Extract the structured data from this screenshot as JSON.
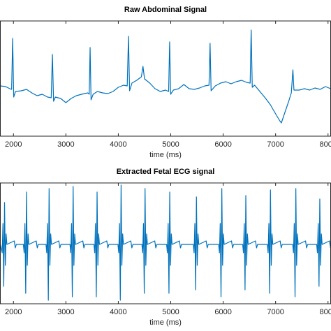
{
  "chart_data": [
    {
      "type": "line",
      "title": "Raw Abdominal Signal",
      "xlabel": "time (ms)",
      "color": "#0072bd",
      "x": [
        1750,
        1850,
        1930,
        1965,
        1985,
        2005,
        2040,
        2150,
        2250,
        2350,
        2450,
        2550,
        2650,
        2720,
        2743,
        2765,
        2800,
        2900,
        3000,
        3100,
        3200,
        3300,
        3420,
        3445,
        3462,
        3480,
        3520,
        3600,
        3700,
        3800,
        3900,
        4000,
        4100,
        4170,
        4194,
        4215,
        4260,
        4350,
        4440,
        4470,
        4500,
        4600,
        4700,
        4800,
        4900,
        4960,
        4979,
        4998,
        5050,
        5150,
        5250,
        5350,
        5450,
        5550,
        5650,
        5730,
        5750,
        5770,
        5850,
        5950,
        6050,
        6150,
        6250,
        6350,
        6450,
        6515,
        6534,
        6555,
        6600,
        6700,
        6800,
        6900,
        7000,
        7080,
        7110,
        7150,
        7250,
        7300,
        7330,
        7350,
        7450,
        7550,
        7650,
        7750,
        7850,
        7950,
        8050
      ],
      "values": [
        0.2,
        0.1,
        -0.2,
        -0.3,
        7.0,
        -1.4,
        -0.6,
        -0.5,
        -0.3,
        -0.8,
        -1.2,
        -1.0,
        -1.4,
        -1.5,
        4.7,
        -2.0,
        -1.4,
        -1.6,
        -2.2,
        -1.6,
        -1.2,
        -1.0,
        -0.8,
        -1.0,
        5.7,
        -1.8,
        -1.0,
        -0.6,
        -0.8,
        -0.9,
        -0.6,
        0.0,
        0.3,
        0.2,
        7.3,
        -0.5,
        0.6,
        1.0,
        1.5,
        3.0,
        1.2,
        0.6,
        -0.2,
        -0.6,
        -0.4,
        -0.6,
        6.5,
        -1.0,
        -0.4,
        -0.2,
        0.4,
        -0.2,
        -0.3,
        -0.1,
        0.2,
        0.3,
        6.3,
        -0.5,
        0.2,
        0.6,
        0.8,
        0.5,
        0.8,
        1.0,
        0.7,
        0.6,
        8.2,
        0.0,
        0.3,
        -0.6,
        -1.5,
        -2.5,
        -3.8,
        -4.8,
        -5.1,
        -4.2,
        -2.0,
        -0.8,
        2.5,
        -0.4,
        -0.4,
        -0.2,
        -0.4,
        -0.1,
        -0.3,
        0.1,
        -0.2
      ],
      "xlim": [
        1750,
        8050
      ],
      "xticks": [
        2000,
        3000,
        4000,
        5000,
        6000,
        7000,
        8000
      ],
      "ylim": [
        -7,
        9.5
      ]
    },
    {
      "type": "line",
      "title": "Extracted Fetal ECG signal",
      "xlabel": "time (ms)",
      "color": "#0072bd",
      "x": [
        1750,
        1785,
        1800,
        1815,
        1830,
        1845,
        1860,
        1875,
        2015,
        2035,
        2055,
        2189,
        2204,
        2219,
        2234,
        2249,
        2264,
        2279,
        2294,
        2434,
        2454,
        2474,
        2620,
        2635,
        2650,
        2665,
        2680,
        2695,
        2710,
        2725,
        2865,
        2885,
        2905,
        3078,
        3093,
        3108,
        3123,
        3138,
        3153,
        3168,
        3183,
        3323,
        3343,
        3363,
        3535,
        3550,
        3565,
        3580,
        3595,
        3610,
        3625,
        3640,
        3780,
        3800,
        3820,
        3993,
        4008,
        4023,
        4038,
        4053,
        4068,
        4083,
        4098,
        4238,
        4258,
        4278,
        4450,
        4465,
        4480,
        4495,
        4510,
        4525,
        4540,
        4555,
        4695,
        4715,
        4735,
        4921,
        4936,
        4951,
        4966,
        4981,
        4996,
        5011,
        5026,
        5166,
        5186,
        5206,
        5430,
        5445,
        5460,
        5475,
        5490,
        5505,
        5520,
        5535,
        5675,
        5695,
        5715,
        5914,
        5929,
        5944,
        5959,
        5974,
        5989,
        6004,
        6019,
        6159,
        6179,
        6199,
        6372,
        6387,
        6402,
        6417,
        6432,
        6447,
        6462,
        6477,
        6617,
        6637,
        6657,
        6842,
        6857,
        6872,
        6887,
        6902,
        6917,
        6932,
        6947,
        7087,
        7107,
        7127,
        7326,
        7341,
        7356,
        7371,
        7386,
        7401,
        7416,
        7431,
        7571,
        7591,
        7611,
        7783,
        7798,
        7813,
        7828,
        7843,
        7858,
        7873,
        7888,
        8028,
        8048
      ],
      "values": [
        0,
        -1.2,
        3,
        -6,
        6,
        -3,
        1.5,
        0,
        0.5,
        -0.5,
        0,
        0,
        -1.2,
        3,
        -7,
        7.5,
        -3,
        1.5,
        0,
        0.5,
        -0.5,
        0,
        0,
        -1.2,
        3,
        -8,
        8,
        -3,
        1.5,
        0,
        0.5,
        -0.5,
        0,
        0,
        -1.2,
        3,
        -7.5,
        8.3,
        -3,
        1.5,
        0,
        0.5,
        -0.5,
        0,
        0,
        -1.2,
        3,
        -7.5,
        7.5,
        -3,
        1.5,
        0,
        0.5,
        -0.5,
        0,
        0,
        -1.2,
        3,
        -8,
        8.5,
        -3,
        1.5,
        0,
        0.5,
        -0.5,
        0,
        0,
        -1.2,
        3,
        -7,
        8,
        -3,
        1.5,
        0,
        0.5,
        -0.5,
        0,
        0,
        -1.2,
        3,
        -7,
        7.5,
        -3,
        1.5,
        0,
        0.5,
        -0.5,
        0,
        0,
        -1.2,
        3,
        -6.5,
        6.8,
        -3,
        1.5,
        0,
        0.5,
        -0.5,
        0,
        0,
        -1.2,
        3,
        -7.5,
        8,
        -3,
        1.5,
        0,
        0.5,
        -0.5,
        0,
        0,
        -1.2,
        3,
        -6.5,
        7,
        -3,
        1.5,
        0,
        0.5,
        -0.5,
        0,
        0,
        -1.2,
        3,
        -7,
        7.8,
        -3,
        1.5,
        0,
        0.5,
        -0.5,
        0,
        0,
        -1.2,
        3,
        -7.5,
        8,
        -3,
        1.5,
        0,
        0.5,
        -0.5,
        0,
        0,
        -1.2,
        3,
        -6,
        6.5,
        -3,
        1.5,
        0,
        0.5,
        -0.5
      ],
      "xlim": [
        1750,
        8050
      ],
      "xticks": [
        2000,
        3000,
        4000,
        5000,
        6000,
        7000,
        8000
      ],
      "ylim": [
        -8.5,
        8.8
      ]
    }
  ]
}
